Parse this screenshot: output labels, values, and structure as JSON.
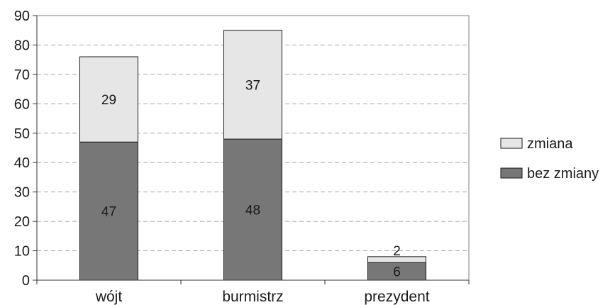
{
  "chart_data": {
    "type": "bar",
    "stacked": true,
    "categories": [
      "wójt",
      "burmistrz",
      "prezydent"
    ],
    "series": [
      {
        "name": "bez zmiany",
        "values": [
          47,
          48,
          6
        ],
        "color": "#777777"
      },
      {
        "name": "zmiana",
        "values": [
          29,
          37,
          2
        ],
        "color": "#e6e6e6"
      }
    ],
    "yticks": [
      0,
      10,
      20,
      30,
      40,
      50,
      60,
      70,
      80,
      90
    ],
    "ylim": [
      0,
      90
    ],
    "grid": true,
    "legend_position": "right",
    "title": "",
    "xlabel": "",
    "ylabel": ""
  }
}
